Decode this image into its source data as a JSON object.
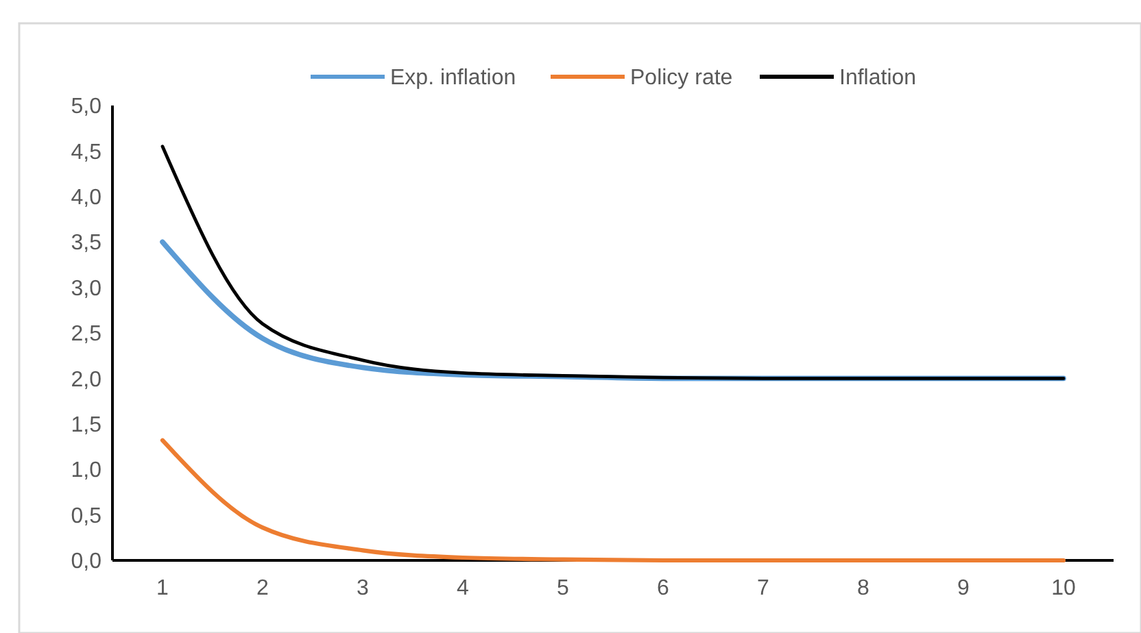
{
  "chart_data": {
    "type": "line",
    "categories": [
      "1",
      "2",
      "3",
      "4",
      "5",
      "6",
      "7",
      "8",
      "9",
      "10"
    ],
    "series": [
      {
        "name": "Exp. inflation",
        "color": "#5b9bd5",
        "values": [
          3.5,
          2.44,
          2.12,
          2.04,
          2.02,
          2.0,
          2.0,
          2.0,
          2.0,
          2.0
        ]
      },
      {
        "name": "Policy rate",
        "color": "#ed7d31",
        "values": [
          1.32,
          0.36,
          0.11,
          0.03,
          0.01,
          0.0,
          0.0,
          0.0,
          0.0,
          0.0
        ]
      },
      {
        "name": "Inflation",
        "color": "#000000",
        "values": [
          4.55,
          2.6,
          2.2,
          2.06,
          2.03,
          2.01,
          2.0,
          2.0,
          2.0,
          2.0
        ]
      }
    ],
    "ylim": [
      0,
      5
    ],
    "yticks": [
      {
        "value": 0,
        "label": "0,0"
      },
      {
        "value": 0.5,
        "label": "0,5"
      },
      {
        "value": 1,
        "label": "1,0"
      },
      {
        "value": 1.5,
        "label": "1,5"
      },
      {
        "value": 2,
        "label": "2,0"
      },
      {
        "value": 2.5,
        "label": "2,5"
      },
      {
        "value": 3,
        "label": "3,0"
      },
      {
        "value": 3.5,
        "label": "3,5"
      },
      {
        "value": 4,
        "label": "4,0"
      },
      {
        "value": 4.5,
        "label": "4,5"
      },
      {
        "value": 5,
        "label": "5,0"
      }
    ],
    "grid": false,
    "legend": "top",
    "marker": "none",
    "line_style": "solid"
  }
}
